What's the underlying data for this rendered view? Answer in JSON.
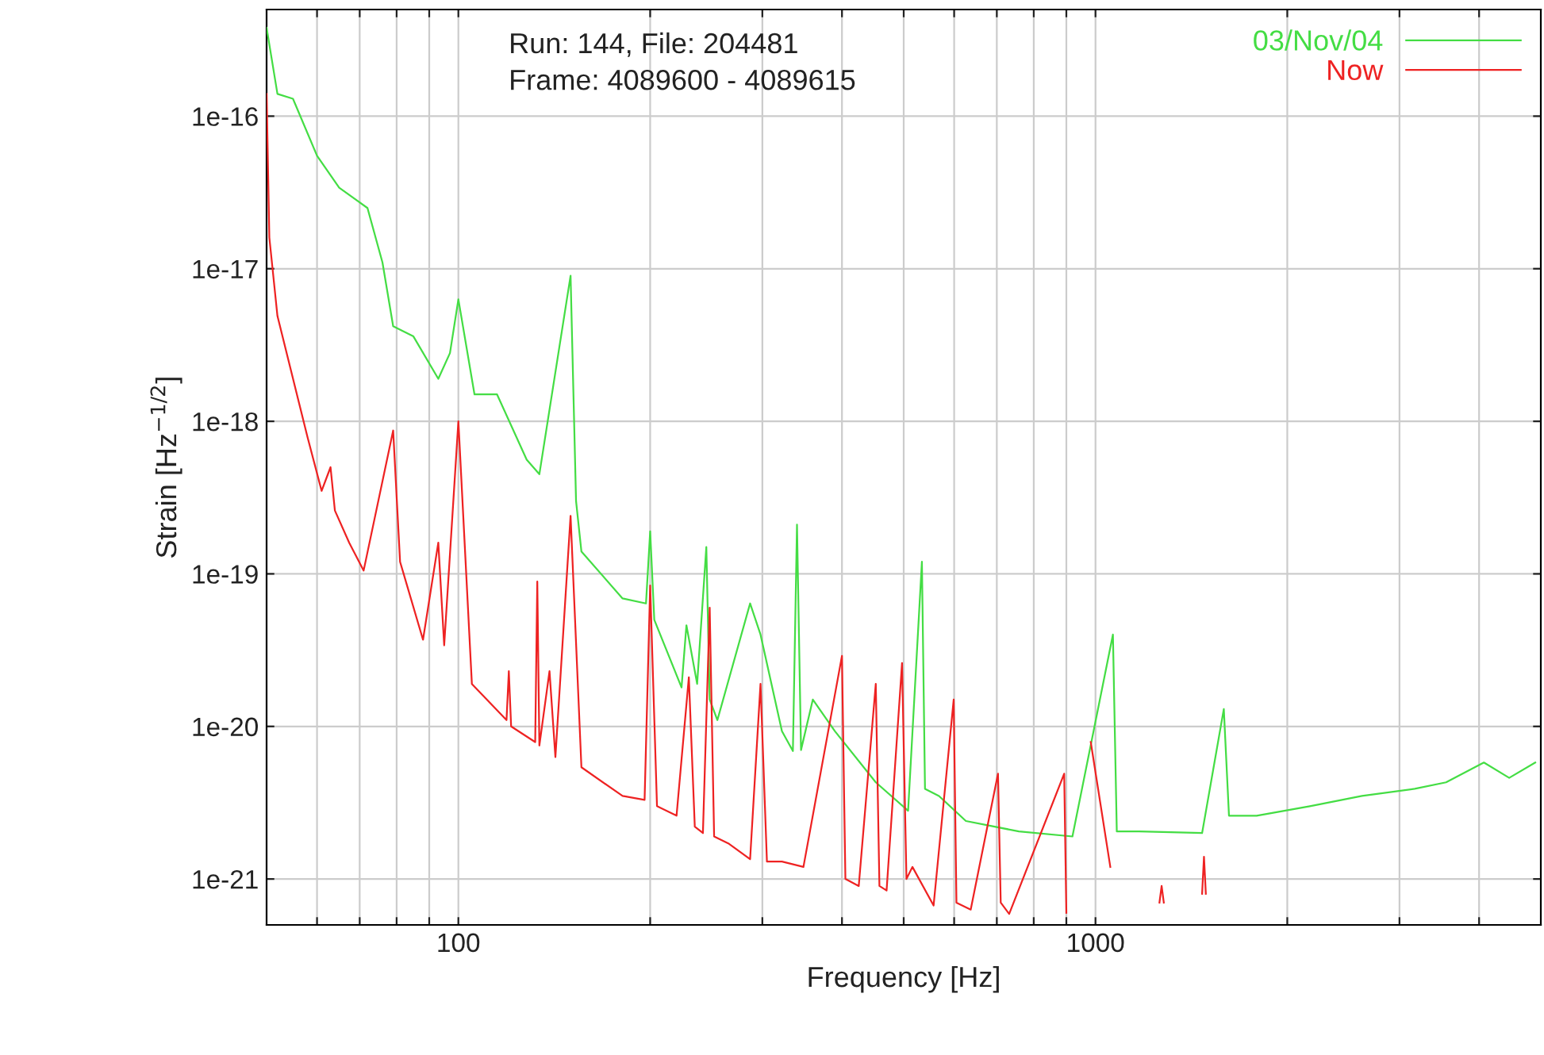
{
  "chart_data": {
    "type": "line",
    "xlabel": "Frequency [Hz]",
    "ylabel": "Strain [Hz$^{−1/2}$]",
    "log": "xy",
    "grid": true,
    "legend": "top right",
    "line_style": "solid",
    "marker": "none",
    "xlim": [
      50,
      5000
    ],
    "ylim": [
      5e-22,
      5e-16
    ],
    "xticks": [
      {
        "value": 60,
        "label": null
      },
      {
        "value": 70,
        "label": null
      },
      {
        "value": 80,
        "label": null
      },
      {
        "value": 90,
        "label": null
      },
      100,
      {
        "value": 200,
        "label": null
      },
      {
        "value": 300,
        "label": null
      },
      {
        "value": 400,
        "label": null
      },
      {
        "value": 500,
        "label": null
      },
      {
        "value": 600,
        "label": null
      },
      {
        "value": 700,
        "label": null
      },
      {
        "value": 800,
        "label": null
      },
      {
        "value": 900,
        "label": null
      },
      1000,
      {
        "value": 2000,
        "label": null
      },
      {
        "value": 3000,
        "label": null
      },
      {
        "value": 4000,
        "label": null
      }
    ],
    "yticks": [
      {
        "value": 1e-21,
        "label": "1e-21"
      },
      {
        "value": 1e-20,
        "label": "1e-20"
      },
      {
        "value": 1e-19,
        "label": "1e-19"
      },
      {
        "value": 1e-18,
        "label": "1e-18"
      },
      {
        "value": 1e-17,
        "label": "1e-17"
      },
      {
        "value": 1e-16,
        "label": "1e-16"
      }
    ],
    "annotations": [
      "Run: 144, File: 204481",
      "Frame: 4089600 - 4089615"
    ],
    "series": [
      {
        "name": "03/Nov/04",
        "color": "#44dd44",
        "x": [
          50,
          52,
          55,
          60,
          65,
          72,
          76,
          79,
          85,
          93,
          97,
          100,
          106,
          115,
          128,
          134,
          150,
          153,
          156,
          181,
          197,
          200,
          203,
          224,
          228,
          237,
          245,
          248,
          255,
          287,
          298,
          322,
          335,
          340,
          345,
          360,
          390,
          452,
          508,
          534,
          540,
          568,
          626,
          758,
          920,
          1065,
          1080,
          1170,
          1470,
          1590,
          1620,
          1790,
          2170,
          2620,
          3170,
          3550,
          4070,
          4460,
          4900
        ],
        "values": [
          3.8e-16,
          1.4e-16,
          1.3e-16,
          5.5e-17,
          3.4e-17,
          2.5e-17,
          1.1e-17,
          4.2e-18,
          3.6e-18,
          1.9e-18,
          2.8e-18,
          6.3e-18,
          1.5e-18,
          1.5e-18,
          5.6e-19,
          4.5e-19,
          9e-18,
          3e-19,
          1.4e-19,
          6.9e-20,
          6.4e-20,
          1.9e-19,
          5e-20,
          1.8e-20,
          4.6e-20,
          1.9e-20,
          1.5e-19,
          1.5e-20,
          1.1e-20,
          6.4e-20,
          4e-20,
          9.3e-21,
          6.9e-21,
          2.1e-19,
          7e-21,
          1.5e-20,
          9.3e-21,
          4.3e-21,
          2.8e-21,
          1.2e-19,
          3.9e-21,
          3.5e-21,
          2.4e-21,
          2.05e-21,
          1.9e-21,
          4e-20,
          2.05e-21,
          2.05e-21,
          2e-21,
          1.3e-20,
          2.6e-21,
          2.6e-21,
          3e-21,
          3.5e-21,
          3.9e-21,
          4.3e-21,
          5.8e-21,
          4.6e-21,
          5.8e-21
        ]
      },
      {
        "name": "Now",
        "color": "#ee2222",
        "x": [
          50,
          50.5,
          52,
          58,
          61,
          63,
          64,
          67.4,
          71,
          79,
          81,
          88,
          93,
          95,
          100,
          105,
          119,
          120,
          121,
          132,
          133,
          134,
          139,
          142,
          150,
          156,
          181,
          196,
          200,
          205,
          220,
          230,
          235,
          242,
          248,
          252,
          266,
          287,
          298,
          305,
          322,
          348,
          400,
          405,
          425,
          452,
          458,
          470,
          497,
          505,
          516,
          557,
          599,
          605,
          637,
          703,
          710,
          732,
          893,
          900,
          930,
          983,
          1055,
          1110,
          1260,
          1270,
          1280,
          1300,
          1470,
          1480,
          1490
        ],
        "values": [
          1.4e-16,
          1.6e-17,
          4.9e-18,
          7.8e-19,
          3.5e-19,
          5e-19,
          2.6e-19,
          1.6e-19,
          1.05e-19,
          8.7e-19,
          1.2e-19,
          3.7e-20,
          1.6e-19,
          3.4e-20,
          1e-18,
          1.9e-20,
          1.1e-20,
          2.3e-20,
          1e-20,
          7.9e-21,
          8.9e-20,
          7.5e-21,
          2.3e-20,
          6.3e-21,
          2.4e-19,
          5.4e-21,
          3.5e-21,
          3.3e-21,
          8.4e-20,
          3e-21,
          2.6e-21,
          2.1e-20,
          2.2e-21,
          2e-21,
          6e-20,
          1.9e-21,
          1.7e-21,
          1.35e-21,
          1.9e-20,
          1.3e-21,
          1.3e-21,
          1.2e-21,
          2.9e-20,
          1e-21,
          9e-22,
          1.9e-20,
          9e-22,
          8.4e-22,
          2.6e-20,
          1e-21,
          1.2e-21,
          6.7e-22,
          1.5e-20,
          7e-22,
          6.3e-22,
          4.9e-21,
          7e-22,
          5.9e-22,
          4.9e-21,
          6e-22,
          null,
          7.9e-21,
          1.2e-21,
          null,
          7e-22,
          9e-22,
          7e-22,
          null,
          8e-22,
          1.4e-21,
          8e-22
        ]
      }
    ]
  }
}
